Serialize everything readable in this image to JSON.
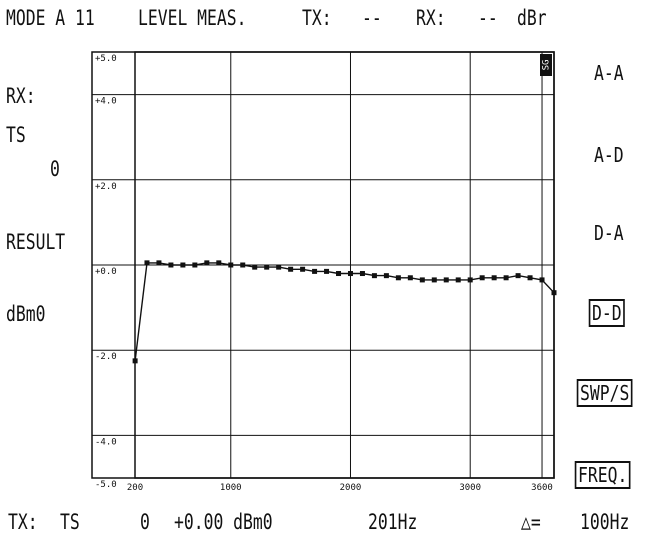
{
  "header": {
    "mode": "MODE A 11",
    "measurement": "LEVEL MEAS.",
    "tx_label": "TX:",
    "tx_value": "--",
    "rx_label": "RX:",
    "rx_value": "--",
    "rx_unit": "dBr"
  },
  "left_panel": {
    "rx_label": "RX:",
    "ts_label": "TS",
    "ts_value": "0",
    "result_label": "RESULT",
    "unit": "dBm0"
  },
  "softkeys": [
    {
      "label": "A-A",
      "boxed": false
    },
    {
      "label": "A-D",
      "boxed": false
    },
    {
      "label": "D-A",
      "boxed": false
    },
    {
      "label": "D-D",
      "boxed": true
    },
    {
      "label": "SWP/S",
      "boxed": true
    },
    {
      "label": "FREQ.",
      "boxed": true
    }
  ],
  "plot_badge": "SG",
  "footer": {
    "tx_label": "TX:",
    "ts_label": "TS",
    "ts_value": "0",
    "level": "+0.00 dBm0",
    "freq": "201Hz",
    "delta_symbol": "△=",
    "delta_value": "100Hz"
  },
  "chart_data": {
    "type": "line",
    "xlim": [
      200,
      3700
    ],
    "ylim": [
      -5.0,
      5.0
    ],
    "y_ticks": [
      {
        "value": 5.0,
        "label": "+5.0"
      },
      {
        "value": 4.0,
        "label": "+4.0"
      },
      {
        "value": 2.0,
        "label": "+2.0"
      },
      {
        "value": 0.0,
        "label": "+0.0"
      },
      {
        "value": -2.0,
        "label": "-2.0"
      },
      {
        "value": -4.0,
        "label": "-4.0"
      },
      {
        "value": -5.0,
        "label": "-5.0"
      }
    ],
    "x_ticks": [
      {
        "value": 200,
        "label": "200"
      },
      {
        "value": 1000,
        "label": "1000"
      },
      {
        "value": 2000,
        "label": "2000"
      },
      {
        "value": 3000,
        "label": "3000"
      },
      {
        "value": 3600,
        "label": "3600"
      }
    ],
    "grid": true,
    "x": [
      201,
      300,
      400,
      500,
      600,
      700,
      800,
      900,
      1000,
      1100,
      1200,
      1300,
      1400,
      1500,
      1600,
      1700,
      1800,
      1900,
      2000,
      2100,
      2200,
      2300,
      2400,
      2500,
      2600,
      2700,
      2800,
      2900,
      3000,
      3100,
      3200,
      3300,
      3400,
      3500,
      3600,
      3700
    ],
    "y": [
      -2.25,
      0.05,
      0.05,
      0.0,
      0.0,
      0.0,
      0.05,
      0.05,
      0.0,
      0.0,
      -0.05,
      -0.05,
      -0.05,
      -0.1,
      -0.1,
      -0.15,
      -0.15,
      -0.2,
      -0.2,
      -0.2,
      -0.25,
      -0.25,
      -0.3,
      -0.3,
      -0.35,
      -0.35,
      -0.35,
      -0.35,
      -0.35,
      -0.3,
      -0.3,
      -0.3,
      -0.25,
      -0.3,
      -0.35,
      -0.65
    ]
  }
}
